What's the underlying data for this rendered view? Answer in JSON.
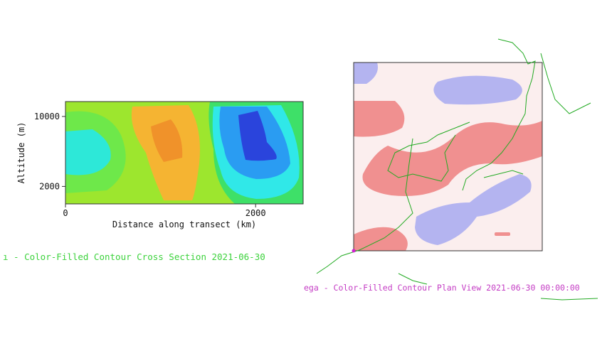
{
  "cross_section": {
    "y_label": "Altitude (m)",
    "x_label": "Distance along transect (km)",
    "xlim": [
      0,
      2500
    ],
    "ylim": [
      0,
      11700
    ],
    "xticks": [
      0,
      2000
    ],
    "yticks": [
      2000,
      10000
    ],
    "caption": "ı - Color-Filled Contour Cross Section 2021-06-30"
  },
  "plan_view": {
    "caption": "ega - Color-Filled Contour Plan View 2021-06-30 00:00:00"
  }
}
